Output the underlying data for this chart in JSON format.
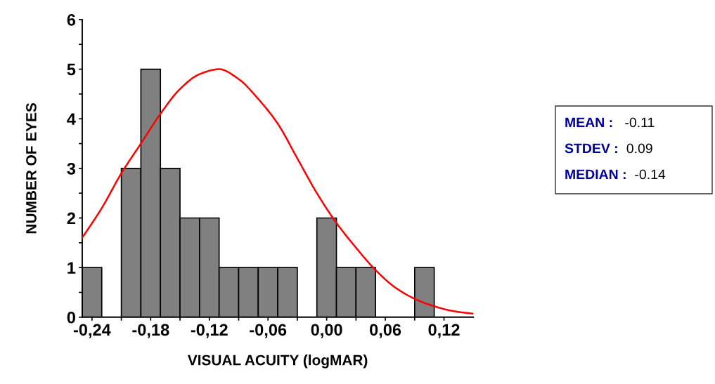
{
  "chart_data": {
    "type": "histogram",
    "xlabel": "VISUAL ACUITY (logMAR)",
    "ylabel": "NUMBER OF EYES",
    "bins": [
      -0.25,
      -0.23,
      -0.21,
      -0.19,
      -0.17,
      -0.15,
      -0.13,
      -0.11,
      -0.09,
      -0.07,
      -0.05,
      -0.03,
      -0.01,
      0.01,
      0.03,
      0.05,
      0.07,
      0.09,
      0.11
    ],
    "values": [
      1,
      0,
      3,
      5,
      3,
      2,
      2,
      1,
      1,
      1,
      1,
      0,
      2,
      1,
      1,
      0,
      0,
      1
    ],
    "color": "#808080",
    "series": [
      {
        "type": "line",
        "color": "#ff0000",
        "x": [
          -0.25,
          -0.23,
          -0.21,
          -0.19,
          -0.17,
          -0.15,
          -0.13,
          -0.11,
          -0.09,
          -0.07,
          -0.05,
          -0.03,
          -0.01,
          0.01,
          0.03,
          0.05,
          0.07,
          0.09,
          0.11,
          0.13,
          0.15
        ],
        "values": [
          1.6,
          2.2,
          2.9,
          3.5,
          4.1,
          4.6,
          4.9,
          5.0,
          4.8,
          4.4,
          3.9,
          3.2,
          2.5,
          1.9,
          1.4,
          0.95,
          0.6,
          0.37,
          0.22,
          0.12,
          0.07
        ]
      }
    ],
    "xlim": [
      -0.25,
      0.15
    ],
    "xticks": [
      {
        "value": -0.24,
        "label": "-0,24"
      },
      {
        "value": -0.21,
        "label": null
      },
      {
        "value": -0.18,
        "label": "-0,18"
      },
      {
        "value": -0.15,
        "label": null
      },
      {
        "value": -0.12,
        "label": "-0,12"
      },
      {
        "value": -0.09,
        "label": null
      },
      {
        "value": -0.06,
        "label": "-0,06"
      },
      {
        "value": -0.03,
        "label": null
      },
      {
        "value": 0.0,
        "label": "0,00"
      },
      {
        "value": 0.03,
        "label": null
      },
      {
        "value": 0.06,
        "label": "0,06"
      },
      {
        "value": 0.09,
        "label": null
      },
      {
        "value": 0.12,
        "label": "0,12"
      }
    ],
    "ylim": [
      0,
      6
    ],
    "yticks": [
      0,
      {
        "value": 0.5,
        "label": null
      },
      1,
      {
        "value": 1.5,
        "label": null
      },
      2,
      {
        "value": 2.5,
        "label": null
      },
      3,
      {
        "value": 3.5,
        "label": null
      },
      4,
      {
        "value": 4.5,
        "label": null
      },
      5,
      {
        "value": 5.5,
        "label": null
      },
      6
    ],
    "annotations": [
      "MEAN :   -0.11",
      "STDEV :  0.09",
      "MEDIAN :  -0.14"
    ],
    "grid": false
  }
}
